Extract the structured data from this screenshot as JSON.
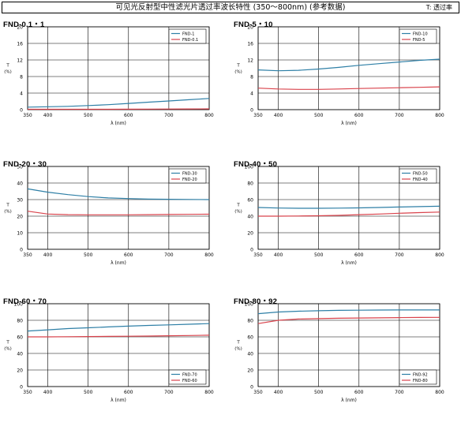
{
  "header": {
    "title": "可见光反射型中性滤光片透过率波长特性 (350～800nm) (参考数据)",
    "note": "T: 透过率"
  },
  "axis_labels": {
    "y_line1": "T",
    "y_line2": "(%)",
    "x": "λ (nm)"
  },
  "colors": {
    "series_a": "#2e7fa6",
    "series_b": "#d9434c",
    "grid": "#000000"
  },
  "chart_data": [
    {
      "type": "line",
      "title": "FND-0.1・1",
      "xlabel": "λ (nm)",
      "ylabel": "T (%)",
      "xlim": [
        350,
        800
      ],
      "ylim": [
        0,
        20
      ],
      "x_ticks": [
        350,
        400,
        500,
        600,
        700,
        800
      ],
      "y_ticks": [
        0,
        4,
        8,
        12,
        16,
        20
      ],
      "legend_position": "top-right",
      "x": [
        350,
        400,
        450,
        500,
        550,
        600,
        650,
        700,
        750,
        800
      ],
      "series": [
        {
          "name": "FND-1",
          "color": "#2e7fa6",
          "values": [
            0.6,
            0.7,
            0.8,
            1.0,
            1.2,
            1.5,
            1.8,
            2.1,
            2.4,
            2.7
          ]
        },
        {
          "name": "FND-0.1",
          "color": "#d9434c",
          "values": [
            0.1,
            0.1,
            0.1,
            0.1,
            0.1,
            0.12,
            0.14,
            0.16,
            0.18,
            0.2
          ]
        }
      ]
    },
    {
      "type": "line",
      "title": "FND-5・10",
      "xlabel": "λ (nm)",
      "ylabel": "T (%)",
      "xlim": [
        350,
        800
      ],
      "ylim": [
        0,
        20
      ],
      "x_ticks": [
        350,
        400,
        500,
        600,
        700,
        800
      ],
      "y_ticks": [
        0,
        4,
        8,
        12,
        16,
        20
      ],
      "legend_position": "top-right",
      "x": [
        350,
        400,
        450,
        500,
        550,
        600,
        650,
        700,
        750,
        800
      ],
      "series": [
        {
          "name": "FND-10",
          "color": "#2e7fa6",
          "values": [
            9.6,
            9.4,
            9.5,
            9.8,
            10.2,
            10.7,
            11.1,
            11.5,
            11.9,
            12.2
          ]
        },
        {
          "name": "FND-5",
          "color": "#d9434c",
          "values": [
            5.2,
            5.0,
            4.9,
            4.9,
            5.0,
            5.1,
            5.2,
            5.3,
            5.4,
            5.5
          ]
        }
      ]
    },
    {
      "type": "line",
      "title": "FND-20・30",
      "xlabel": "λ (nm)",
      "ylabel": "T (%)",
      "xlim": [
        350,
        800
      ],
      "ylim": [
        0,
        50
      ],
      "x_ticks": [
        350,
        400,
        500,
        600,
        700,
        800
      ],
      "y_ticks": [
        0,
        10,
        20,
        30,
        40,
        50
      ],
      "legend_position": "top-right",
      "x": [
        350,
        400,
        450,
        500,
        550,
        600,
        650,
        700,
        750,
        800
      ],
      "series": [
        {
          "name": "FND-30",
          "color": "#2e7fa6",
          "values": [
            36.5,
            34.5,
            33.0,
            31.8,
            31.0,
            30.6,
            30.3,
            30.2,
            30.1,
            30.0
          ]
        },
        {
          "name": "FND-20",
          "color": "#d9434c",
          "values": [
            23.0,
            21.3,
            20.9,
            20.8,
            20.8,
            20.8,
            20.9,
            21.0,
            21.1,
            21.2
          ]
        }
      ]
    },
    {
      "type": "line",
      "title": "FND-40・50",
      "xlabel": "λ (nm)",
      "ylabel": "T (%)",
      "xlim": [
        350,
        800
      ],
      "ylim": [
        0,
        100
      ],
      "x_ticks": [
        350,
        400,
        500,
        600,
        700,
        800
      ],
      "y_ticks": [
        0,
        20,
        40,
        60,
        80,
        100
      ],
      "legend_position": "top-right",
      "x": [
        350,
        400,
        450,
        500,
        550,
        600,
        650,
        700,
        750,
        800
      ],
      "series": [
        {
          "name": "FND-50",
          "color": "#2e7fa6",
          "values": [
            50.5,
            49.8,
            49.5,
            49.5,
            49.7,
            50.0,
            50.5,
            51.0,
            51.5,
            52.0
          ]
        },
        {
          "name": "FND-40",
          "color": "#d9434c",
          "values": [
            40.0,
            40.0,
            40.2,
            40.5,
            41.0,
            41.8,
            42.6,
            43.5,
            44.3,
            45.0
          ]
        }
      ]
    },
    {
      "type": "line",
      "title": "FND-60・70",
      "xlabel": "λ (nm)",
      "ylabel": "T (%)",
      "xlim": [
        350,
        800
      ],
      "ylim": [
        0,
        100
      ],
      "x_ticks": [
        350,
        400,
        500,
        600,
        700,
        800
      ],
      "y_ticks": [
        0,
        20,
        40,
        60,
        80,
        100
      ],
      "legend_position": "bottom-right",
      "x": [
        350,
        400,
        450,
        500,
        550,
        600,
        650,
        700,
        750,
        800
      ],
      "series": [
        {
          "name": "FND-70",
          "color": "#2e7fa6",
          "values": [
            67.0,
            68.5,
            70.0,
            71.0,
            72.0,
            73.0,
            73.8,
            74.5,
            75.2,
            76.0
          ]
        },
        {
          "name": "FND-60",
          "color": "#d9434c",
          "values": [
            60.0,
            60.0,
            60.2,
            60.4,
            60.6,
            60.8,
            61.0,
            61.3,
            61.6,
            62.0
          ]
        }
      ]
    },
    {
      "type": "line",
      "title": "FND-80・92",
      "xlabel": "λ (nm)",
      "ylabel": "T (%)",
      "xlim": [
        350,
        800
      ],
      "ylim": [
        0,
        100
      ],
      "x_ticks": [
        350,
        400,
        500,
        600,
        700,
        800
      ],
      "y_ticks": [
        0,
        20,
        40,
        60,
        80,
        100
      ],
      "legend_position": "bottom-right",
      "x": [
        350,
        400,
        450,
        500,
        550,
        600,
        650,
        700,
        750,
        800
      ],
      "series": [
        {
          "name": "FND-92",
          "color": "#2e7fa6",
          "values": [
            88.0,
            90.0,
            91.0,
            91.5,
            92.0,
            92.2,
            92.4,
            92.5,
            92.5,
            92.5
          ]
        },
        {
          "name": "FND-80",
          "color": "#d9434c",
          "values": [
            76.0,
            80.0,
            81.5,
            82.0,
            82.5,
            82.8,
            83.0,
            83.2,
            83.4,
            83.5
          ]
        }
      ]
    }
  ]
}
